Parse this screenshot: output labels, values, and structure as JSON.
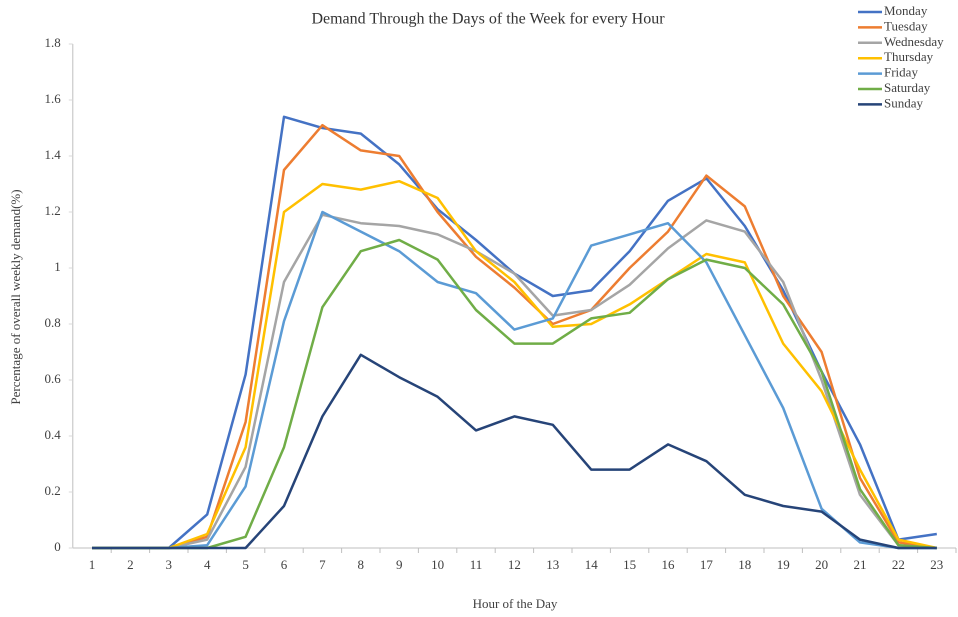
{
  "chart_data": {
    "type": "line",
    "title": "Demand Through the Days of the Week for every Hour",
    "x_label": "Hour of the Day",
    "y_label": "Percentage of overall weekly demand(%)",
    "categories": [
      "1",
      "2",
      "3",
      "4",
      "5",
      "6",
      "7",
      "8",
      "9",
      "10",
      "11",
      "12",
      "13",
      "14",
      "15",
      "16",
      "17",
      "18",
      "19",
      "20",
      "21",
      "22",
      "23"
    ],
    "ylim": [
      0,
      1.8
    ],
    "yticks": [
      0,
      0.2,
      0.4,
      0.6,
      0.8,
      1,
      1.2,
      1.4,
      1.6,
      1.8
    ],
    "grid": false,
    "legend": "top-right",
    "series": [
      {
        "name": "Monday",
        "color": "#4472c4",
        "values": [
          0,
          0,
          0,
          0.12,
          0.62,
          1.54,
          1.5,
          1.48,
          1.37,
          1.21,
          1.1,
          0.98,
          0.9,
          0.92,
          1.06,
          1.24,
          1.32,
          1.15,
          0.92,
          0.63,
          0.37,
          0.03,
          0.05
        ]
      },
      {
        "name": "Tuesday",
        "color": "#ed7d31",
        "values": [
          0,
          0,
          0,
          0.04,
          0.45,
          1.35,
          1.51,
          1.42,
          1.4,
          1.2,
          1.04,
          0.93,
          0.8,
          0.85,
          1.0,
          1.13,
          1.33,
          1.22,
          0.9,
          0.7,
          0.25,
          0.02,
          0
        ]
      },
      {
        "name": "Wednesday",
        "color": "#a5a5a5",
        "values": [
          0,
          0,
          0,
          0.03,
          0.29,
          0.95,
          1.19,
          1.16,
          1.15,
          1.12,
          1.06,
          0.98,
          0.83,
          0.85,
          0.94,
          1.07,
          1.17,
          1.13,
          0.95,
          0.6,
          0.19,
          0.01,
          0
        ]
      },
      {
        "name": "Thursday",
        "color": "#ffc000",
        "values": [
          0,
          0,
          0,
          0.05,
          0.36,
          1.2,
          1.3,
          1.28,
          1.31,
          1.25,
          1.06,
          0.95,
          0.79,
          0.8,
          0.87,
          0.96,
          1.05,
          1.02,
          0.73,
          0.56,
          0.28,
          0.03,
          0
        ]
      },
      {
        "name": "Friday",
        "color": "#5b9bd5",
        "values": [
          0,
          0,
          0,
          0.01,
          0.22,
          0.81,
          1.2,
          1.13,
          1.06,
          0.95,
          0.91,
          0.78,
          0.82,
          1.08,
          1.12,
          1.16,
          1.02,
          0.76,
          0.5,
          0.14,
          0.02,
          0,
          0
        ]
      },
      {
        "name": "Saturday",
        "color": "#70ad47",
        "values": [
          0,
          0,
          0,
          0,
          0.04,
          0.36,
          0.86,
          1.06,
          1.1,
          1.03,
          0.85,
          0.73,
          0.73,
          0.82,
          0.84,
          0.96,
          1.03,
          1.0,
          0.87,
          0.63,
          0.21,
          0.01,
          0
        ]
      },
      {
        "name": "Sunday",
        "color": "#264478",
        "values": [
          0,
          0,
          0,
          0,
          0,
          0.15,
          0.47,
          0.69,
          0.61,
          0.54,
          0.42,
          0.47,
          0.44,
          0.28,
          0.28,
          0.37,
          0.31,
          0.19,
          0.15,
          0.13,
          0.03,
          0,
          0
        ]
      }
    ]
  }
}
